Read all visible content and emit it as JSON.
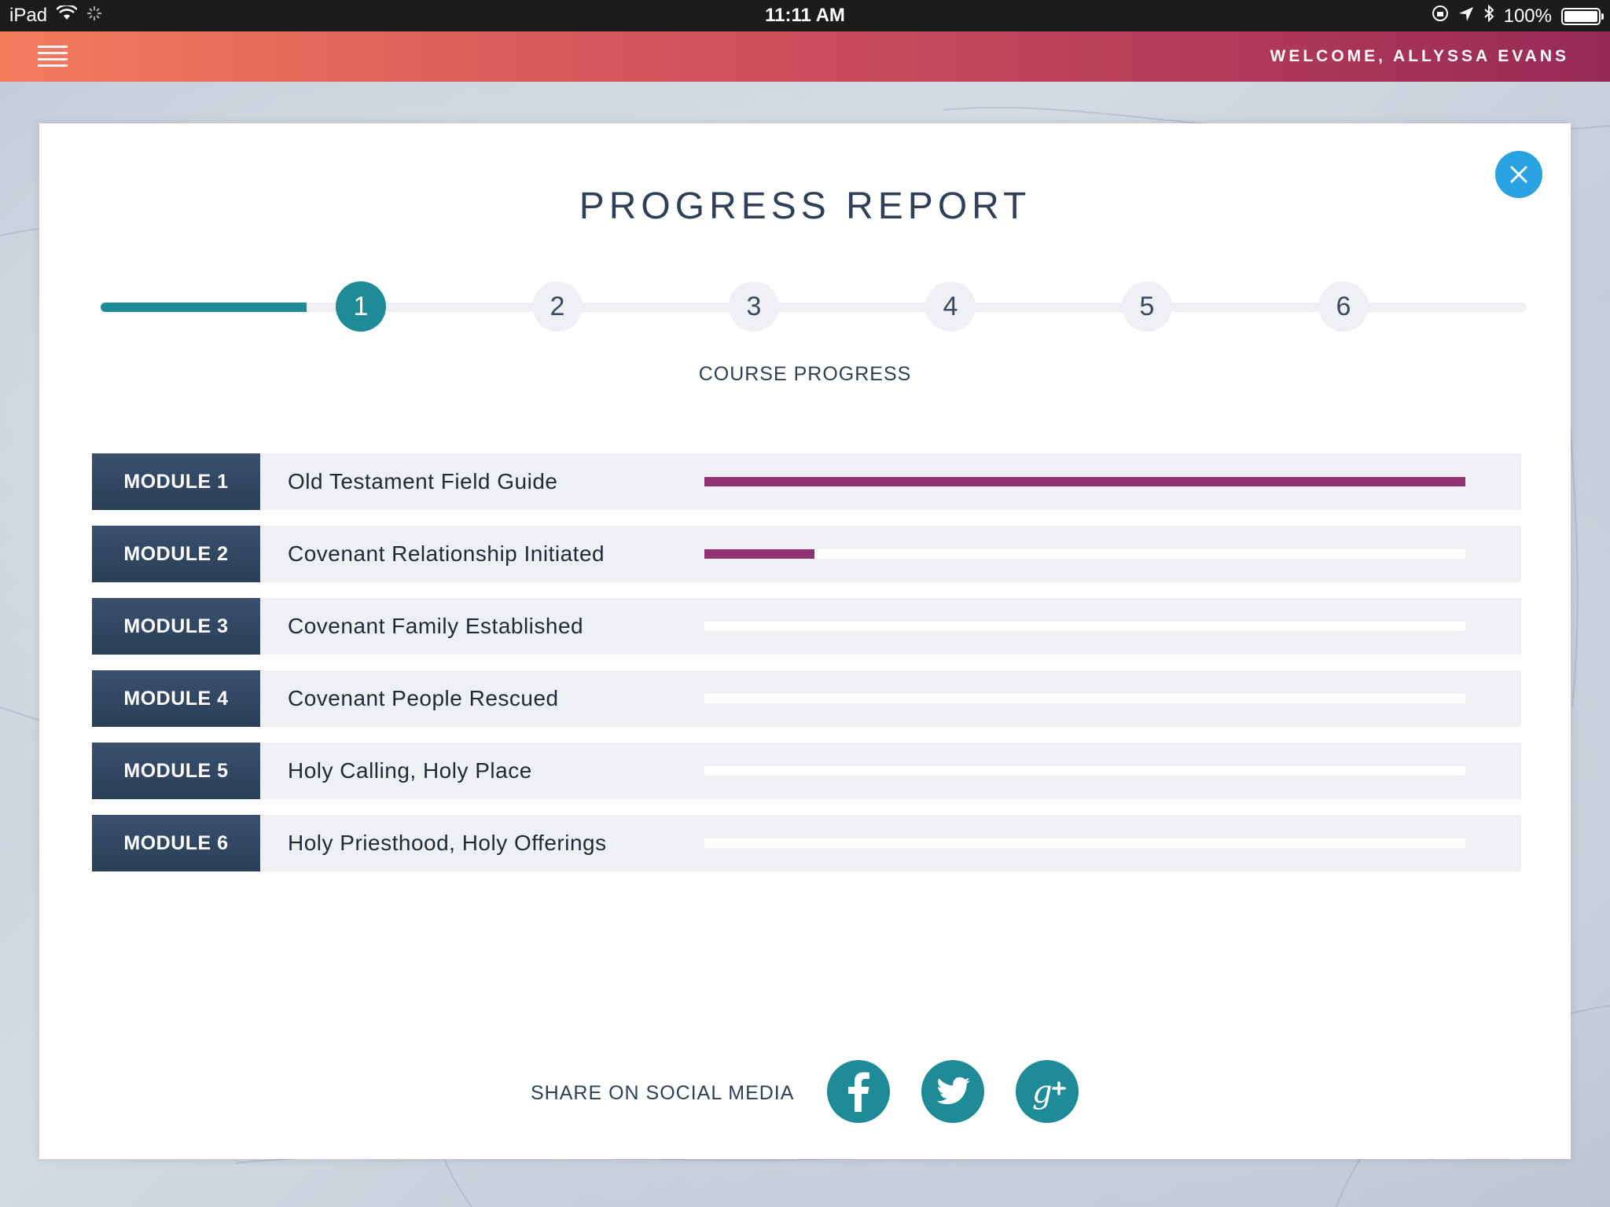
{
  "status_bar": {
    "device": "iPad",
    "time": "11:11 AM",
    "battery": "100%"
  },
  "header": {
    "welcome": "WELCOME, ALLYSSA EVANS"
  },
  "modal": {
    "title": "PROGRESS REPORT",
    "subtitle": "COURSE PROGRESS",
    "steps": [
      "1",
      "2",
      "3",
      "4",
      "5",
      "6"
    ],
    "active_step": 1,
    "modules": [
      {
        "badge": "MODULE 1",
        "name": "Old Testament Field Guide",
        "progress": 1.0
      },
      {
        "badge": "MODULE 2",
        "name": "Covenant Relationship Initiated",
        "progress": 0.145
      },
      {
        "badge": "MODULE 3",
        "name": "Covenant Family Established",
        "progress": 0
      },
      {
        "badge": "MODULE 4",
        "name": "Covenant People Rescued",
        "progress": 0
      },
      {
        "badge": "MODULE 5",
        "name": "Holy Calling, Holy Place",
        "progress": 0
      },
      {
        "badge": "MODULE 6",
        "name": "Holy Priesthood, Holy Offerings",
        "progress": 0
      }
    ],
    "share_label": "SHARE ON SOCIAL MEDIA",
    "social": [
      {
        "icon": "facebook-icon",
        "glyph": "f"
      },
      {
        "icon": "twitter-icon",
        "glyph": "t"
      },
      {
        "icon": "google-plus-icon",
        "glyph": "g+"
      }
    ]
  },
  "colors": {
    "accent_teal": "#1e8b97",
    "progress_purple": "#8f3270",
    "close_blue": "#2aa2e2",
    "module_navy": "#2f4462"
  }
}
